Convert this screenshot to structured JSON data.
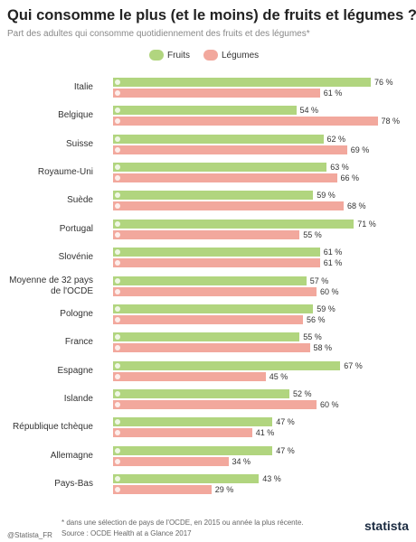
{
  "chart_data": {
    "type": "bar",
    "orientation": "horizontal",
    "title": "Qui consomme le plus (et le moins) de fruits et légumes ?",
    "subtitle": "Part des adultes qui consomme quotidiennement des fruits et des légumes*",
    "categories": [
      "Italie",
      "Belgique",
      "Suisse",
      "Royaume-Uni",
      "Suède",
      "Portugal",
      "Slovénie",
      "Moyenne de 32 pays de l'OCDE",
      "Pologne",
      "France",
      "Espagne",
      "Islande",
      "République tchèque",
      "Allemagne",
      "Pays-Bas"
    ],
    "series": [
      {
        "name": "Fruits",
        "color": "#b1d57f",
        "values": [
          76,
          54,
          62,
          63,
          59,
          71,
          61,
          57,
          59,
          55,
          67,
          52,
          47,
          47,
          43
        ],
        "value_labels": [
          "76 %",
          "54 %",
          "62 %",
          "63 %",
          "59 %",
          "71 %",
          "61 %",
          "57 %",
          "59 %",
          "55 %",
          "67 %",
          "52 %",
          "47 %",
          "47 %",
          "43 %"
        ]
      },
      {
        "name": "Légumes",
        "color": "#f2a89d",
        "values": [
          61,
          78,
          69,
          66,
          68,
          55,
          61,
          60,
          56,
          58,
          45,
          60,
          41,
          34,
          29
        ],
        "value_labels": [
          "61 %",
          "78 %",
          "69 %",
          "66 %",
          "68 %",
          "55 %",
          "61 %",
          "60 %",
          "56 %",
          "58 %",
          "45 %",
          "60 %",
          "41 %",
          "34 %",
          "29 %"
        ]
      }
    ],
    "footnote": "* dans une sélection de pays de l'OCDE, en 2015 ou année la plus récente.",
    "source": "Source : OCDE Health at a Glance 2017",
    "handle": "@Statista_FR",
    "brand": "statista"
  }
}
